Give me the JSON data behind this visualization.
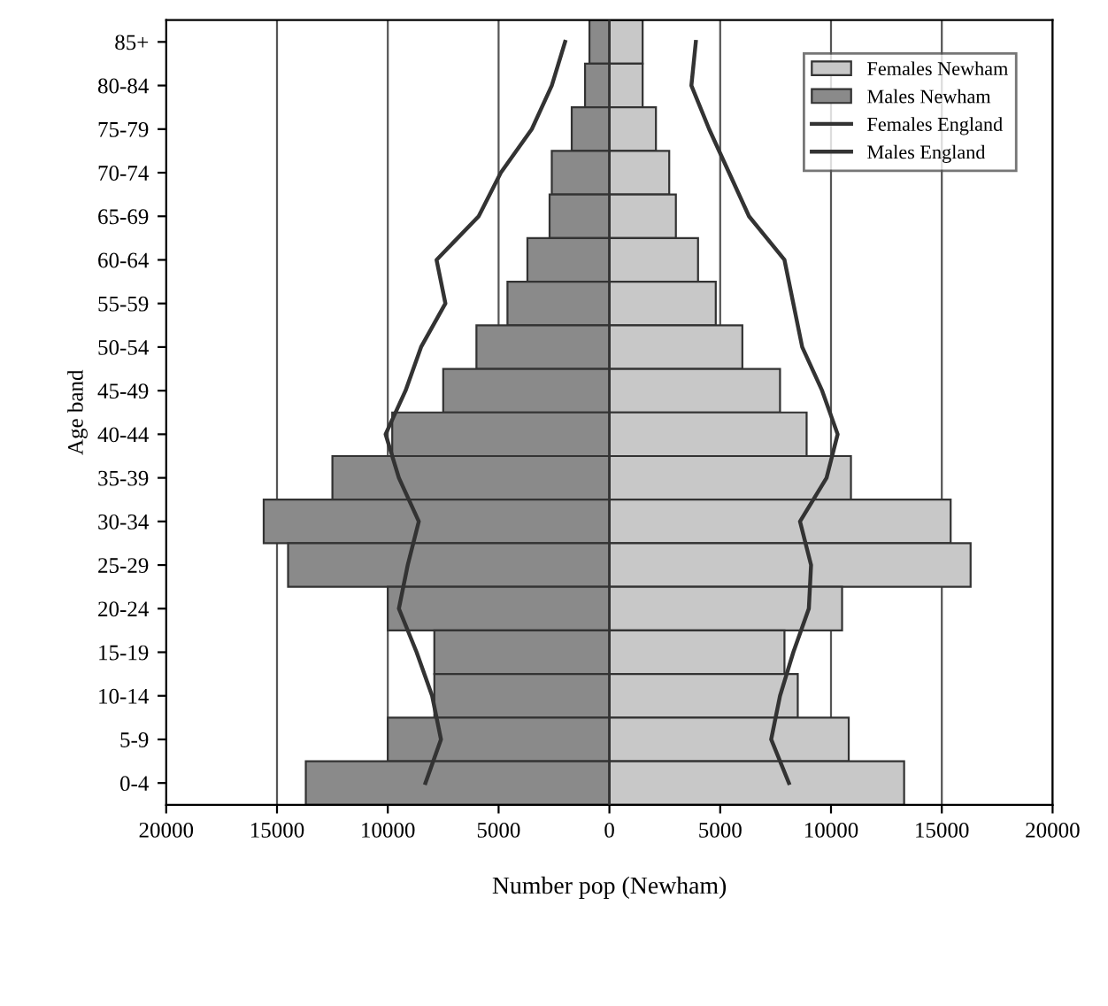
{
  "chart_data": {
    "type": "bar",
    "orientation": "horizontal",
    "stacked": true,
    "xlabel": "Number pop (Newham)",
    "ylabel": "Age band",
    "categories": [
      "85+",
      "80-84",
      "75-79",
      "70-74",
      "65-69",
      "60-64",
      "55-59",
      "50-54",
      "45-49",
      "40-44",
      "35-39",
      "30-34",
      "25-29",
      "20-24",
      "15-19",
      "10-14",
      "5-9",
      "0-4"
    ],
    "series": [
      {
        "name": "Females Newham",
        "color": "#c8c8c8",
        "values": [
          1500,
          1500,
          2100,
          2700,
          3000,
          4000,
          4800,
          6000,
          7700,
          8900,
          10900,
          15400,
          16300,
          10500,
          7900,
          8500,
          10800,
          13300
        ]
      },
      {
        "name": "Males Newham",
        "color": "#8a8a8a",
        "values": [
          -900,
          -1100,
          -1700,
          -2600,
          -2700,
          -3700,
          -4600,
          -6000,
          -7500,
          -9800,
          -12500,
          -15600,
          -14500,
          -10000,
          -7900,
          -7900,
          -10000,
          -13700
        ]
      },
      {
        "name": "Females England",
        "type": "line",
        "color": "#333333",
        "values": [
          3900,
          3700,
          4500,
          5400,
          6300,
          7900,
          8300,
          8700,
          9600,
          10300,
          9800,
          8600,
          9100,
          9000,
          8300,
          7700,
          7300,
          8100
        ]
      },
      {
        "name": "Males England",
        "type": "line",
        "color": "#333333",
        "values": [
          -2000,
          -2600,
          -3500,
          -4900,
          -5900,
          -7800,
          -7400,
          -8500,
          -9200,
          -10100,
          -9500,
          -8600,
          -9100,
          -9500,
          -8700,
          -8000,
          -7600,
          -8300
        ]
      }
    ],
    "xlim": [
      -20000,
      20000
    ],
    "xticks": [
      {
        "value": -20000,
        "label": "20000"
      },
      {
        "value": -15000,
        "label": "15000"
      },
      {
        "value": -10000,
        "label": "10000"
      },
      {
        "value": -5000,
        "label": "5000"
      },
      0,
      5000,
      10000,
      15000,
      20000
    ],
    "grid": "x",
    "legend": "top right"
  }
}
